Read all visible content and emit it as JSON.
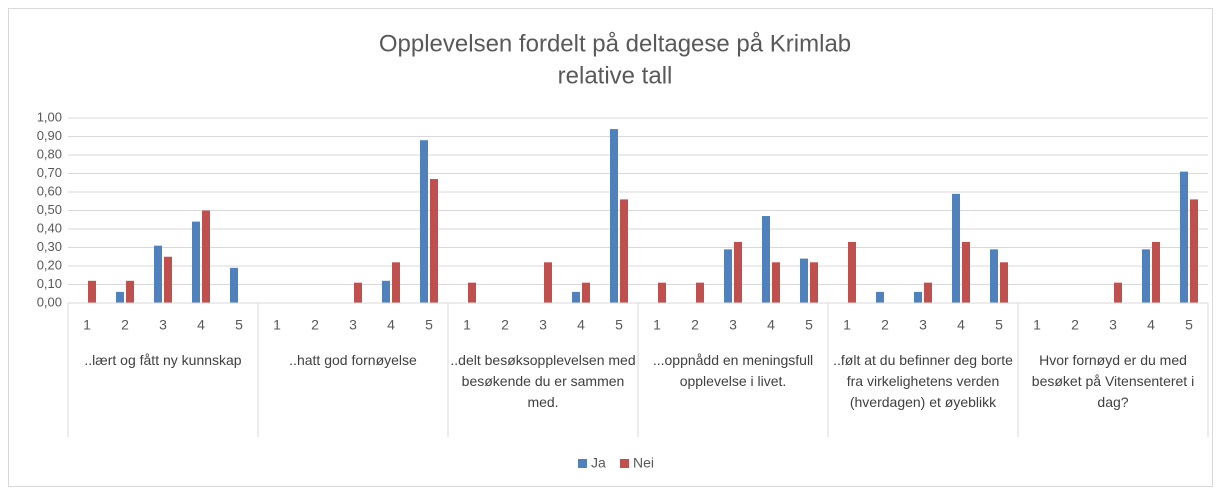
{
  "chart_data": {
    "type": "bar",
    "title": "Opplevelsen fordelt på deltagese på Krimlab",
    "subtitle": "relative tall",
    "categories": [
      "1",
      "2",
      "3",
      "4",
      "5",
      "1",
      "2",
      "3",
      "4",
      "5",
      "1",
      "2",
      "3",
      "4",
      "5",
      "1",
      "2",
      "3",
      "4",
      "5",
      "1",
      "2",
      "3",
      "4",
      "5",
      "1",
      "2",
      "3",
      "4",
      "5"
    ],
    "groups": [
      "..lært og fått ny kunnskap",
      "..hatt god fornøyelse",
      "..delt besøksopplevelsen med besøkende du er sammen med.",
      "...oppnådd en meningsfull opplevelse i livet.",
      "..følt at du befinner deg borte fra virkelighetens verden (hverdagen) et øyeblikk",
      "Hvor fornøyd er du med besøket på Vitensenteret i dag?"
    ],
    "series": [
      {
        "name": "Ja",
        "color": "#4f81bd",
        "values": [
          0,
          0.06,
          0.31,
          0.44,
          0.19,
          0,
          0,
          0,
          0.12,
          0.88,
          0,
          0,
          0,
          0.06,
          0.94,
          0,
          0,
          0.29,
          0.47,
          0.24,
          0,
          0.06,
          0.06,
          0.59,
          0.29,
          0,
          0,
          0,
          0.29,
          0.71
        ]
      },
      {
        "name": "Nei",
        "color": "#c0504d",
        "values": [
          0.12,
          0.12,
          0.25,
          0.5,
          0,
          0,
          0,
          0.11,
          0.22,
          0.67,
          0.11,
          0,
          0.22,
          0.11,
          0.56,
          0.11,
          0.11,
          0.33,
          0.22,
          0.22,
          0.33,
          0,
          0.11,
          0.33,
          0.22,
          0,
          0,
          0.11,
          0.33,
          0.56
        ]
      }
    ],
    "ylim": [
      0,
      1
    ],
    "yticks": [
      {
        "value": 0,
        "label": "0,00"
      },
      {
        "value": 0.1,
        "label": "0,10"
      },
      {
        "value": 0.2,
        "label": "0,20"
      },
      {
        "value": 0.3,
        "label": "0,30"
      },
      {
        "value": 0.4,
        "label": "0,40"
      },
      {
        "value": 0.5,
        "label": "0,50"
      },
      {
        "value": 0.6,
        "label": "0,60"
      },
      {
        "value": 0.7,
        "label": "0,70"
      },
      {
        "value": 0.8,
        "label": "0,80"
      },
      {
        "value": 0.9,
        "label": "0,90"
      },
      {
        "value": 1,
        "label": "1,00"
      }
    ],
    "grid": true,
    "legend": "bottom"
  }
}
